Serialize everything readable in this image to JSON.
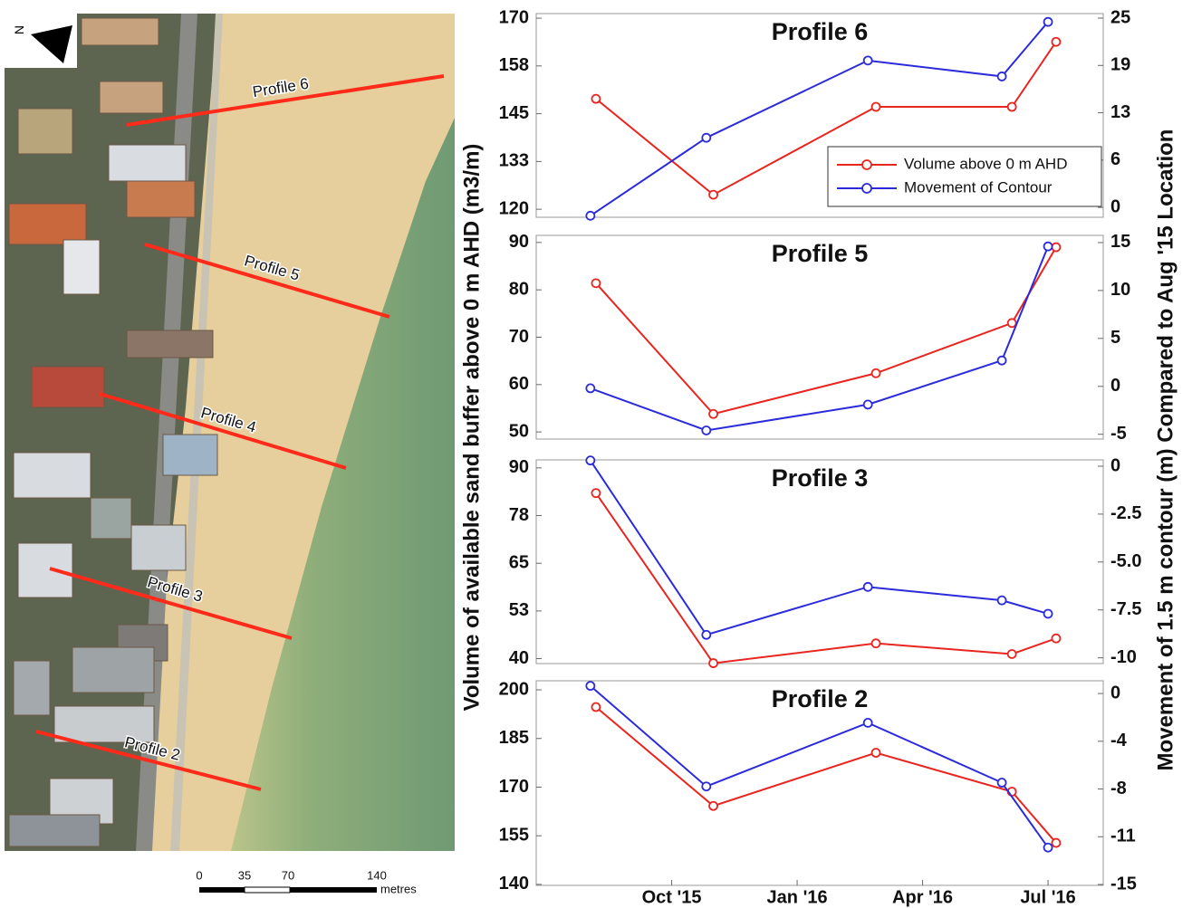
{
  "map": {
    "profiles": [
      "Profile 6",
      "Profile 5",
      "Profile 4",
      "Profile 3",
      "Profile 2"
    ],
    "scale": [
      "0",
      "35",
      "70",
      "140"
    ],
    "scale_unit": "metres",
    "north": "N"
  },
  "y_label": "Volume of available sand buffer above 0 m AHD (m3/m)",
  "y2_label": "Movement of 1.5 m contour (m) Compared to Aug '15 Location",
  "chart_data": [
    {
      "type": "line",
      "title": "Profile 6",
      "legend": "lower right",
      "xlim": [
        2015.48,
        2016.61
      ],
      "ylim": [
        117.9,
        171.2
      ],
      "yticks": [
        120,
        {
          "value": 132.5,
          "label": "133"
        },
        145,
        {
          "value": 157.5,
          "label": "158"
        },
        170
      ],
      "y2lim": [
        -1.3,
        25.6
      ],
      "y2ticks": [
        0,
        {
          "value": 6.25,
          "label": "6"
        },
        {
          "value": 12.5,
          "label": "13"
        },
        {
          "value": 18.75,
          "label": "19"
        },
        25
      ],
      "series": [
        {
          "name": "Volume above 0 m AHD",
          "color": "#e8251f",
          "x": [
            2015.599,
            2015.833,
            2016.157,
            2016.428,
            2016.516
          ],
          "values": [
            148.9,
            123.8,
            146.8,
            146.8,
            163.8
          ]
        },
        {
          "name": "Movement of Contour",
          "color": "#2b2bdc",
          "axis": "y2",
          "x": [
            2015.588,
            2015.819,
            2016.141,
            2016.408,
            2016.5
          ],
          "values": [
            -1.1,
            9.2,
            19.4,
            17.3,
            24.5
          ]
        }
      ]
    },
    {
      "type": "line",
      "title": "Profile 5",
      "xlim": [
        2015.48,
        2016.61
      ],
      "ylim": [
        48.5,
        91.5
      ],
      "yticks": [
        50,
        60,
        70,
        80,
        90
      ],
      "y2lim": [
        -5.5,
        15.75
      ],
      "y2ticks": [
        -5,
        0,
        5,
        10,
        15
      ],
      "series": [
        {
          "color": "#e8251f",
          "x": [
            2015.599,
            2015.833,
            2016.157,
            2016.428,
            2016.516
          ],
          "values": [
            81.4,
            53.8,
            62.4,
            73.0,
            89.0
          ]
        },
        {
          "color": "#2b2bdc",
          "axis": "y2",
          "x": [
            2015.588,
            2015.819,
            2016.141,
            2016.408,
            2016.5
          ],
          "values": [
            -0.2,
            -4.6,
            -1.9,
            2.7,
            14.6
          ]
        }
      ]
    },
    {
      "type": "line",
      "title": "Profile 3",
      "xlim": [
        2015.48,
        2016.61
      ],
      "ylim": [
        38.7,
        92.1
      ],
      "yticks": [
        40,
        {
          "value": 52.5,
          "label": "53"
        },
        65,
        {
          "value": 77.5,
          "label": "78"
        },
        90
      ],
      "y2lim": [
        -10.3,
        0.33
      ],
      "y2ticks": [
        -10,
        -7.5,
        {
          "value": -5,
          "label": "-5.0"
        },
        -2.5,
        0
      ],
      "series": [
        {
          "color": "#e8251f",
          "x": [
            2015.599,
            2015.833,
            2016.157,
            2016.428,
            2016.516
          ],
          "values": [
            83.4,
            38.8,
            44.0,
            41.2,
            45.3
          ]
        },
        {
          "color": "#2b2bdc",
          "axis": "y2",
          "x": [
            2015.588,
            2015.819,
            2016.141,
            2016.408,
            2016.5
          ],
          "values": [
            0.3,
            -8.8,
            -6.3,
            -7.0,
            -7.7
          ]
        }
      ]
    },
    {
      "type": "line",
      "title": "Profile 2",
      "xlim": [
        2015.48,
        2016.61
      ],
      "xticks": [
        {
          "value": 2015.75,
          "label": "Oct '15"
        },
        {
          "value": 2016.0,
          "label": "Jan '16"
        },
        {
          "value": 2016.25,
          "label": "Apr '16"
        },
        {
          "value": 2016.5,
          "label": "Jul '16"
        }
      ],
      "ylim": [
        139.7,
        202.8
      ],
      "yticks": [
        140,
        155,
        170,
        185,
        200
      ],
      "y2lim": [
        -15.07,
        1.0
      ],
      "y2ticks": [
        -15,
        {
          "value": -11.25,
          "label": "-11"
        },
        {
          "value": -7.5,
          "label": "-8"
        },
        {
          "value": -3.75,
          "label": "-4"
        },
        0
      ],
      "series": [
        {
          "color": "#e8251f",
          "x": [
            2015.599,
            2015.833,
            2016.157,
            2016.428,
            2016.516
          ],
          "values": [
            194.7,
            164.2,
            180.6,
            168.6,
            152.8
          ]
        },
        {
          "color": "#2b2bdc",
          "axis": "y2",
          "x": [
            2015.588,
            2015.819,
            2016.141,
            2016.408,
            2016.5
          ],
          "values": [
            0.6,
            -7.3,
            -2.3,
            -7.0,
            -12.1
          ]
        }
      ]
    }
  ]
}
